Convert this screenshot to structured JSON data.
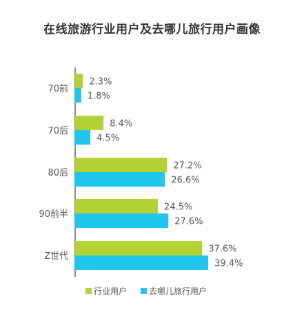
{
  "chart_data": {
    "type": "bar",
    "orientation": "horizontal",
    "title": "在线旅游行业用户及去哪儿旅行用户画像",
    "categories": [
      "70前",
      "70后",
      "80后",
      "90前半",
      "Z世代"
    ],
    "series": [
      {
        "name": "行业用户",
        "values": [
          2.3,
          8.4,
          27.2,
          24.5,
          37.6
        ],
        "color": "#b3d334"
      },
      {
        "name": "去哪儿旅行用户",
        "values": [
          1.8,
          4.5,
          26.6,
          27.6,
          39.4
        ],
        "color": "#20c6ee"
      }
    ],
    "value_labels": [
      [
        "2.3%",
        "8.4%",
        "27.2%",
        "24.5%",
        "37.6%"
      ],
      [
        "1.8%",
        "4.5%",
        "26.6%",
        "27.6%",
        "39.4%"
      ]
    ],
    "xlim": [
      0,
      43
    ],
    "grid": false,
    "legend_position": "bottom"
  }
}
